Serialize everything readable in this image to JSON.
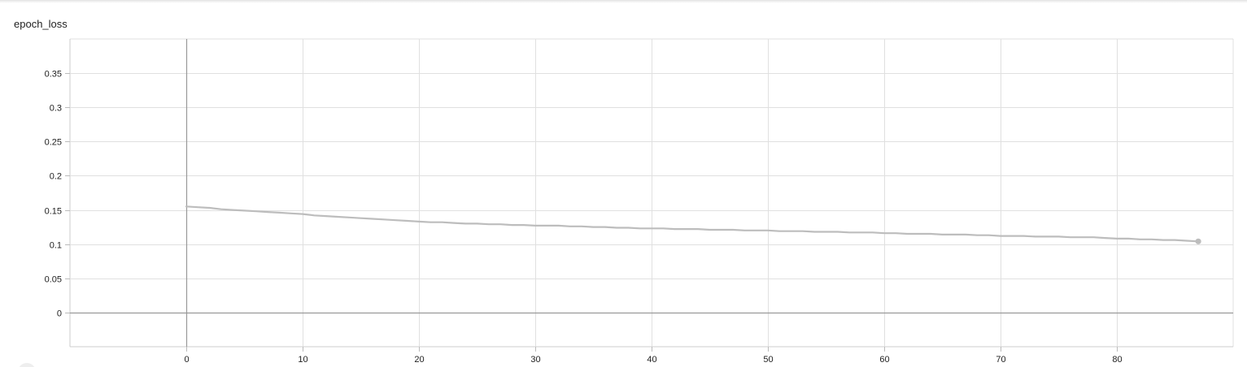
{
  "chart_data": {
    "type": "line",
    "title": "epoch_loss",
    "xlabel": "",
    "ylabel": "",
    "xlim": [
      -10,
      90
    ],
    "ylim": [
      -0.05,
      0.4
    ],
    "xticks": [
      0,
      10,
      20,
      30,
      40,
      50,
      60,
      70,
      80
    ],
    "yticks": [
      0,
      0.05,
      0.1,
      0.15,
      0.2,
      0.25,
      0.3,
      0.35
    ],
    "ytick_labels": [
      "0",
      "0.05",
      "0.1",
      "0.15",
      "0.2",
      "0.25",
      "0.3",
      "0.35"
    ],
    "grid": true,
    "series": [
      {
        "color": "#bdbdbd",
        "x": [
          0,
          1,
          2,
          3,
          4,
          5,
          6,
          7,
          8,
          9,
          10,
          11,
          12,
          13,
          14,
          15,
          16,
          17,
          18,
          19,
          20,
          21,
          22,
          23,
          24,
          25,
          26,
          27,
          28,
          29,
          30,
          31,
          32,
          33,
          34,
          35,
          36,
          37,
          38,
          39,
          40,
          41,
          42,
          43,
          44,
          45,
          46,
          47,
          48,
          49,
          50,
          51,
          52,
          53,
          54,
          55,
          56,
          57,
          58,
          59,
          60,
          61,
          62,
          63,
          64,
          65,
          66,
          67,
          68,
          69,
          70,
          71,
          72,
          73,
          74,
          75,
          76,
          77,
          78,
          79,
          80,
          81,
          82,
          83,
          84,
          85,
          86,
          87
        ],
        "y": [
          0.155,
          0.154,
          0.153,
          0.151,
          0.15,
          0.149,
          0.148,
          0.147,
          0.146,
          0.145,
          0.144,
          0.142,
          0.141,
          0.14,
          0.139,
          0.138,
          0.137,
          0.136,
          0.135,
          0.134,
          0.133,
          0.132,
          0.132,
          0.131,
          0.13,
          0.13,
          0.129,
          0.129,
          0.128,
          0.128,
          0.127,
          0.127,
          0.127,
          0.126,
          0.126,
          0.125,
          0.125,
          0.124,
          0.124,
          0.123,
          0.123,
          0.123,
          0.122,
          0.122,
          0.122,
          0.121,
          0.121,
          0.121,
          0.12,
          0.12,
          0.12,
          0.119,
          0.119,
          0.119,
          0.118,
          0.118,
          0.118,
          0.117,
          0.117,
          0.117,
          0.116,
          0.116,
          0.115,
          0.115,
          0.115,
          0.114,
          0.114,
          0.114,
          0.113,
          0.113,
          0.112,
          0.112,
          0.112,
          0.111,
          0.111,
          0.111,
          0.11,
          0.11,
          0.11,
          0.109,
          0.108,
          0.108,
          0.107,
          0.107,
          0.106,
          0.106,
          0.105,
          0.104
        ]
      }
    ]
  }
}
